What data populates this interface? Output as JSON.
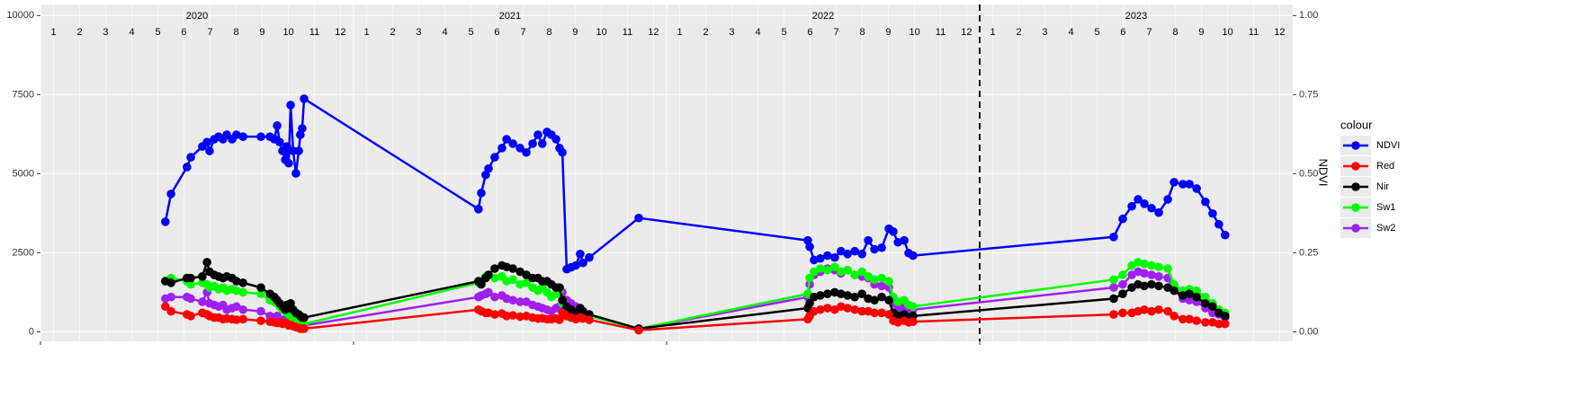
{
  "chart_data": {
    "type": "line",
    "y2label": "NDVI",
    "legend_title": "colour",
    "legend": "right",
    "grid": true,
    "xlim": [
      2020,
      2024
    ],
    "xticks": [
      2020,
      2021,
      2022,
      2023
    ],
    "ylim": [
      -300,
      10350
    ],
    "yticks": [
      0,
      2500,
      5000,
      7500,
      10000
    ],
    "y2lim": [
      -0.03,
      1.035
    ],
    "y2ticks": [
      {
        "value": 0,
        "label": "0.00"
      },
      {
        "value": 0.25,
        "label": "0.25"
      },
      {
        "value": 0.5,
        "label": "0.50"
      },
      {
        "value": 0.75,
        "label": "0.75"
      },
      {
        "value": 1,
        "label": "1.00"
      }
    ],
    "vline": 2023,
    "year_labels": [
      {
        "value": 2020.5,
        "label": "2020"
      },
      {
        "value": 2021.5,
        "label": "2021"
      },
      {
        "value": 2022.5,
        "label": "2022"
      },
      {
        "value": 2023.5,
        "label": "2023"
      }
    ],
    "month_labels": [
      {
        "value": 2020.042,
        "label": "1"
      },
      {
        "value": 2020.125,
        "label": "2"
      },
      {
        "value": 2020.208,
        "label": "3"
      },
      {
        "value": 2020.292,
        "label": "4"
      },
      {
        "value": 2020.375,
        "label": "5"
      },
      {
        "value": 2020.458,
        "label": "6"
      },
      {
        "value": 2020.542,
        "label": "7"
      },
      {
        "value": 2020.625,
        "label": "8"
      },
      {
        "value": 2020.708,
        "label": "9"
      },
      {
        "value": 2020.792,
        "label": "10"
      },
      {
        "value": 2020.875,
        "label": "11"
      },
      {
        "value": 2020.958,
        "label": "12"
      },
      {
        "value": 2021.042,
        "label": "1"
      },
      {
        "value": 2021.125,
        "label": "2"
      },
      {
        "value": 2021.208,
        "label": "3"
      },
      {
        "value": 2021.292,
        "label": "4"
      },
      {
        "value": 2021.375,
        "label": "5"
      },
      {
        "value": 2021.458,
        "label": "6"
      },
      {
        "value": 2021.542,
        "label": "7"
      },
      {
        "value": 2021.625,
        "label": "8"
      },
      {
        "value": 2021.708,
        "label": "9"
      },
      {
        "value": 2021.792,
        "label": "10"
      },
      {
        "value": 2021.875,
        "label": "11"
      },
      {
        "value": 2021.958,
        "label": "12"
      },
      {
        "value": 2022.042,
        "label": "1"
      },
      {
        "value": 2022.125,
        "label": "2"
      },
      {
        "value": 2022.208,
        "label": "3"
      },
      {
        "value": 2022.292,
        "label": "4"
      },
      {
        "value": 2022.375,
        "label": "5"
      },
      {
        "value": 2022.458,
        "label": "6"
      },
      {
        "value": 2022.542,
        "label": "7"
      },
      {
        "value": 2022.625,
        "label": "8"
      },
      {
        "value": 2022.708,
        "label": "9"
      },
      {
        "value": 2022.792,
        "label": "10"
      },
      {
        "value": 2022.875,
        "label": "11"
      },
      {
        "value": 2022.958,
        "label": "12"
      },
      {
        "value": 2023.042,
        "label": "1"
      },
      {
        "value": 2023.125,
        "label": "2"
      },
      {
        "value": 2023.208,
        "label": "3"
      },
      {
        "value": 2023.292,
        "label": "4"
      },
      {
        "value": 2023.375,
        "label": "5"
      },
      {
        "value": 2023.458,
        "label": "6"
      },
      {
        "value": 2023.542,
        "label": "7"
      },
      {
        "value": 2023.625,
        "label": "8"
      },
      {
        "value": 2023.708,
        "label": "9"
      },
      {
        "value": 2023.792,
        "label": "10"
      },
      {
        "value": 2023.875,
        "label": "11"
      },
      {
        "value": 2023.958,
        "label": "12"
      }
    ],
    "x": [
      2020.399,
      2020.417,
      2020.468,
      2020.48,
      2020.517,
      2020.532,
      2020.54,
      2020.555,
      2020.569,
      2020.583,
      2020.595,
      2020.612,
      2020.626,
      2020.647,
      2020.704,
      2020.733,
      2020.747,
      2020.756,
      2020.764,
      2020.773,
      2020.782,
      2020.787,
      2020.793,
      2020.799,
      2020.807,
      2020.816,
      2020.825,
      2020.83,
      2020.836,
      2020.842,
      2021.399,
      2021.408,
      2021.422,
      2021.431,
      2021.451,
      2021.474,
      2021.489,
      2021.509,
      2021.532,
      2021.552,
      2021.572,
      2021.589,
      2021.603,
      2021.618,
      2021.632,
      2021.647,
      2021.658,
      2021.667,
      2021.681,
      2021.695,
      2021.71,
      2021.724,
      2021.733,
      2021.753,
      2021.911,
      2022.451,
      2022.457,
      2022.471,
      2022.491,
      2022.514,
      2022.537,
      2022.557,
      2022.578,
      2022.601,
      2022.624,
      2022.644,
      2022.664,
      2022.687,
      2022.71,
      2022.724,
      2022.739,
      2022.759,
      2022.773,
      2022.787,
      2023.428,
      2023.457,
      2023.486,
      2023.506,
      2023.526,
      2023.549,
      2023.572,
      2023.601,
      2023.621,
      2023.649,
      2023.67,
      2023.693,
      2023.721,
      2023.744,
      2023.764,
      2023.784
    ],
    "series": [
      {
        "name": "Sw2",
        "color": "#a020f0",
        "values": [
          1050,
          1100,
          1100,
          1050,
          950,
          1250,
          900,
          850,
          800,
          850,
          700,
          750,
          800,
          700,
          650,
          500,
          450,
          500,
          400,
          350,
          400,
          300,
          250,
          300,
          200,
          200,
          150,
          200,
          150,
          200,
          1100,
          1150,
          1200,
          1250,
          1100,
          1150,
          1050,
          1000,
          950,
          950,
          850,
          800,
          750,
          700,
          650,
          750,
          800,
          1250,
          1000,
          900,
          800,
          700,
          600,
          500,
          100,
          1100,
          1500,
          1800,
          1900,
          2000,
          1950,
          1850,
          1950,
          1800,
          1750,
          1700,
          1500,
          1450,
          1400,
          900,
          700,
          800,
          650,
          700,
          1400,
          1500,
          1800,
          1900,
          1850,
          1800,
          1750,
          1700,
          1300,
          1050,
          1000,
          950,
          750,
          600,
          550,
          450
        ]
      },
      {
        "name": "Sw1",
        "color": "#00ff00",
        "values": [
          1600,
          1700,
          1600,
          1500,
          1550,
          1500,
          1400,
          1450,
          1350,
          1400,
          1300,
          1350,
          1300,
          1250,
          1200,
          1000,
          950,
          900,
          800,
          700,
          650,
          600,
          550,
          500,
          450,
          350,
          300,
          250,
          250,
          250,
          1550,
          1600,
          1750,
          1800,
          1700,
          1750,
          1600,
          1650,
          1500,
          1550,
          1400,
          1300,
          1400,
          1250,
          1100,
          1200,
          1300,
          900,
          700,
          650,
          550,
          700,
          600,
          500,
          100,
          1200,
          1700,
          1900,
          2000,
          1950,
          2050,
          1900,
          1950,
          1800,
          1900,
          1750,
          1650,
          1700,
          1600,
          1100,
          950,
          1000,
          850,
          800,
          1650,
          1800,
          2100,
          2200,
          2150,
          2100,
          2050,
          2000,
          1500,
          1300,
          1350,
          1300,
          1100,
          900,
          700,
          600
        ]
      },
      {
        "name": "Nir",
        "color": "#000000",
        "values": [
          1600,
          1550,
          1700,
          1700,
          1750,
          2200,
          1900,
          1800,
          1750,
          1700,
          1750,
          1700,
          1600,
          1550,
          1400,
          1200,
          1100,
          1000,
          900,
          800,
          700,
          850,
          750,
          900,
          700,
          600,
          550,
          500,
          450,
          450,
          1600,
          1500,
          1700,
          1800,
          2000,
          2100,
          2050,
          2000,
          1900,
          1800,
          1700,
          1700,
          1600,
          1600,
          1500,
          1400,
          1400,
          1000,
          800,
          700,
          600,
          750,
          650,
          550,
          100,
          750,
          900,
          1100,
          1150,
          1200,
          1250,
          1200,
          1150,
          1100,
          1200,
          1050,
          1000,
          1100,
          1000,
          600,
          500,
          550,
          450,
          500,
          1050,
          1200,
          1400,
          1500,
          1450,
          1500,
          1450,
          1400,
          1300,
          1150,
          1200,
          1100,
          900,
          800,
          600,
          500
        ]
      },
      {
        "name": "Red",
        "color": "#ff0000",
        "values": [
          800,
          650,
          550,
          500,
          600,
          550,
          500,
          450,
          450,
          400,
          420,
          400,
          380,
          400,
          350,
          320,
          300,
          280,
          300,
          250,
          280,
          260,
          200,
          220,
          180,
          150,
          120,
          100,
          100,
          100,
          700,
          650,
          600,
          600,
          550,
          580,
          500,
          520,
          480,
          500,
          450,
          420,
          430,
          400,
          400,
          420,
          380,
          600,
          500,
          450,
          400,
          450,
          420,
          380,
          50,
          400,
          500,
          650,
          700,
          750,
          700,
          800,
          750,
          700,
          650,
          650,
          600,
          600,
          550,
          350,
          300,
          350,
          300,
          320,
          550,
          600,
          600,
          650,
          700,
          650,
          700,
          650,
          500,
          400,
          400,
          350,
          300,
          300,
          250,
          250
        ]
      },
      {
        "name": "NDVI",
        "color": "#0000ff",
        "axis": "y2",
        "values": [
          0.348,
          0.436,
          0.521,
          0.552,
          0.586,
          0.6,
          0.572,
          0.609,
          0.617,
          0.609,
          0.623,
          0.609,
          0.623,
          0.617,
          0.617,
          0.617,
          0.609,
          0.652,
          0.6,
          0.572,
          0.544,
          0.586,
          0.533,
          0.717,
          0.572,
          0.501,
          0.572,
          0.623,
          0.643,
          0.737,
          0.388,
          0.439,
          0.496,
          0.516,
          0.552,
          0.581,
          0.609,
          0.595,
          0.581,
          0.567,
          0.595,
          0.623,
          0.595,
          0.632,
          0.623,
          0.609,
          0.581,
          0.567,
          0.198,
          0.204,
          0.21,
          0.246,
          0.218,
          0.235,
          0.36,
          0.289,
          0.269,
          0.227,
          0.232,
          0.241,
          0.235,
          0.255,
          0.246,
          0.255,
          0.246,
          0.289,
          0.261,
          0.266,
          0.326,
          0.317,
          0.283,
          0.289,
          0.249,
          0.241,
          0.3,
          0.357,
          0.397,
          0.419,
          0.405,
          0.391,
          0.377,
          0.419,
          0.473,
          0.467,
          0.467,
          0.453,
          0.411,
          0.374,
          0.34,
          0.306
        ]
      }
    ],
    "legend_order": [
      4,
      3,
      2,
      1,
      0
    ]
  }
}
